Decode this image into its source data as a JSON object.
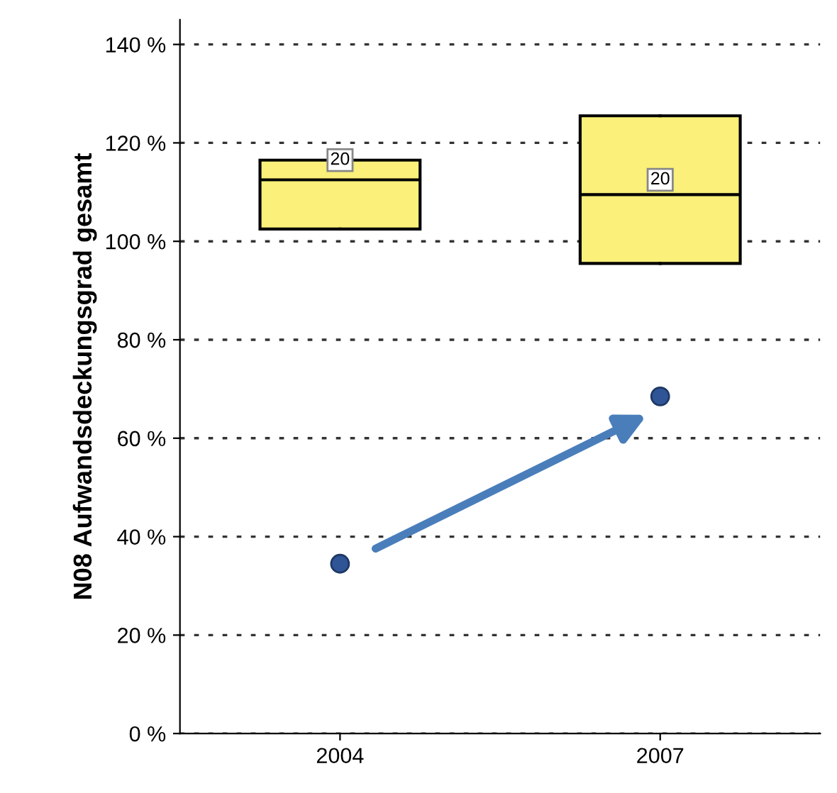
{
  "chart_data": {
    "type": "box",
    "ylabel": "N08 Aufwandsdeckungsgrad gesamt",
    "categories": [
      "2004",
      "2007"
    ],
    "boxes": [
      {
        "low": 102.5,
        "q1": 102.5,
        "median": 112.5,
        "q3": 116.5,
        "high": 116.5,
        "outliers": [
          34.5
        ]
      },
      {
        "low": 95.5,
        "q1": 95.5,
        "median": 109.5,
        "q3": 125.5,
        "high": 125.5,
        "outliers": [
          68.5
        ]
      }
    ],
    "color": "#faf07a",
    "annotations": [
      {
        "text": "20",
        "x": "2004",
        "y": 116.5
      },
      {
        "text": "20",
        "x": "2007",
        "y": 112.5
      }
    ],
    "ylim": [
      0,
      145
    ],
    "yticks": [
      {
        "value": 0,
        "label": "0 %"
      },
      {
        "value": 20,
        "label": "20 %"
      },
      {
        "value": 40,
        "label": "40 %"
      },
      {
        "value": 60,
        "label": "60 %"
      },
      {
        "value": 80,
        "label": "80 %"
      },
      {
        "value": 100,
        "label": "100 %"
      },
      {
        "value": 120,
        "label": "120 %"
      },
      {
        "value": 140,
        "label": "140 %"
      }
    ],
    "grid": "y"
  }
}
